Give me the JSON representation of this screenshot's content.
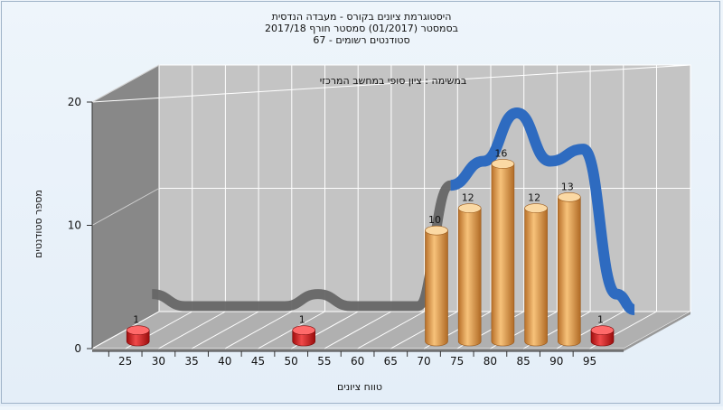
{
  "chart_data": {
    "type": "bar",
    "title_lines": [
      "היסטוגרמת ציונים בקורס - מעבדה הנדסית",
      "בסמסטר  (01/2017)  סמסטר חורף  2017/18",
      "סטודנטים רשומים - 67"
    ],
    "annotation": "במשימה : ציון סופי במחשב המרכזי",
    "xlabel": "טווח ציונים",
    "ylabel": "מספר סטודנטים",
    "ylim": [
      0,
      20
    ],
    "yticks": [
      0,
      10,
      20
    ],
    "x_ticks": [
      "25",
      "30",
      "35",
      "40",
      "45",
      "50",
      "55",
      "60",
      "65",
      "70",
      "75",
      "80",
      "85",
      "90",
      "95"
    ],
    "categories": [
      "25",
      "30",
      "35",
      "40",
      "45",
      "50",
      "55",
      "60",
      "65",
      "70",
      "75",
      "80",
      "85",
      "90",
      "95"
    ],
    "values": [
      1,
      0,
      0,
      0,
      0,
      1,
      0,
      0,
      0,
      10,
      12,
      16,
      12,
      13,
      1
    ],
    "bar_colors": {
      "low": "#d81818",
      "high": "#f0a850"
    },
    "curve_color_low": "#666666",
    "curve_color_high": "#2e6bc0",
    "grid": true,
    "legend": "none"
  }
}
